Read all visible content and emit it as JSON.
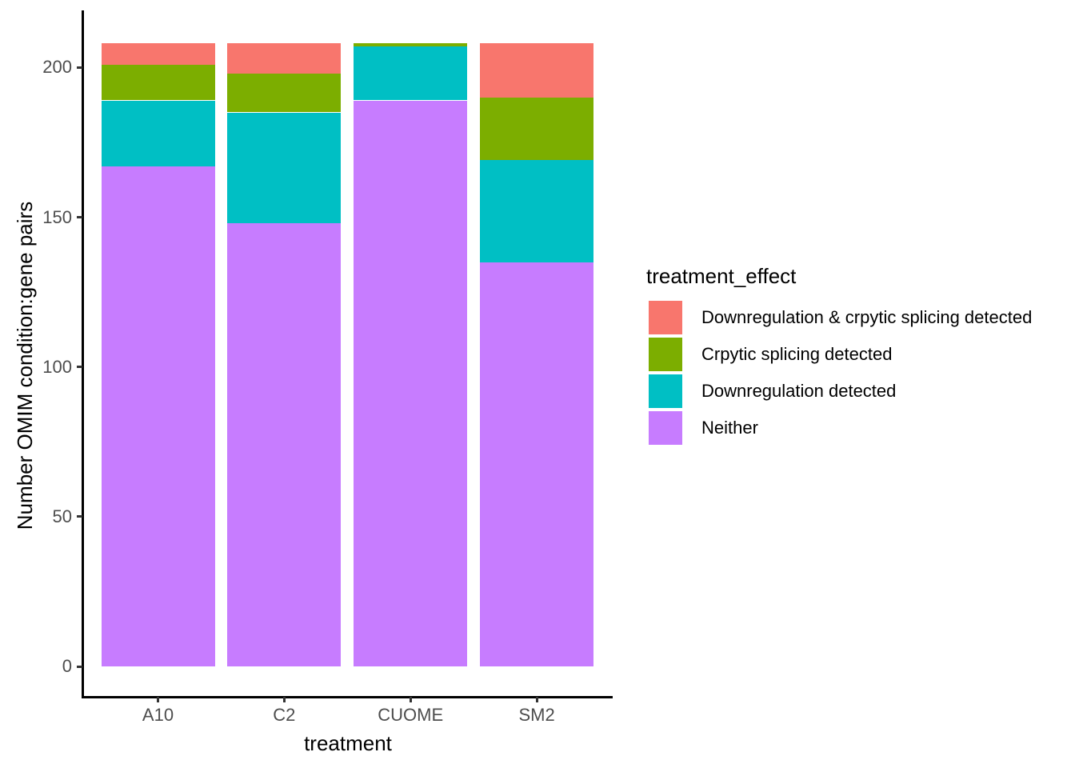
{
  "chart_data": {
    "type": "bar",
    "stacked": true,
    "title": "",
    "xlabel": "treatment",
    "ylabel": "Number OMIM condition:gene pairs",
    "categories": [
      "A10",
      "C2",
      "CUOME",
      "SM2"
    ],
    "series": [
      {
        "name": "Downregulation & crpytic splicing detected",
        "color": "#F8766D",
        "values": [
          7,
          10,
          0,
          18
        ]
      },
      {
        "name": "Crpytic splicing detected",
        "color": "#7CAE00",
        "values": [
          12,
          13,
          1,
          21
        ]
      },
      {
        "name": "Downregulation detected",
        "color": "#00BFC4",
        "values": [
          22,
          37,
          18,
          34
        ]
      },
      {
        "name": "Neither",
        "color": "#C77CFF",
        "values": [
          167,
          148,
          189,
          135
        ]
      }
    ],
    "stack_order_bottom_to_top": [
      "Neither",
      "Downregulation detected",
      "Crpytic splicing detected",
      "Downregulation & crpytic splicing detected"
    ],
    "stack_totals": [
      208,
      208,
      208,
      208
    ],
    "yticks": [
      0,
      50,
      100,
      150,
      200
    ],
    "ylim": [
      0,
      218
    ],
    "grid": false,
    "legend_position": "right"
  },
  "legend": {
    "title": "treatment_effect",
    "items": [
      {
        "label": "Downregulation & crpytic splicing detected",
        "color": "#F8766D"
      },
      {
        "label": "Crpytic splicing detected",
        "color": "#7CAE00"
      },
      {
        "label": "Downregulation detected",
        "color": "#00BFC4"
      },
      {
        "label": "Neither",
        "color": "#C77CFF"
      }
    ]
  },
  "colors": {
    "background": "#FFFFFF",
    "axis_line": "#000000",
    "tick_label": "#4D4D4D",
    "axis_title": "#000000"
  }
}
